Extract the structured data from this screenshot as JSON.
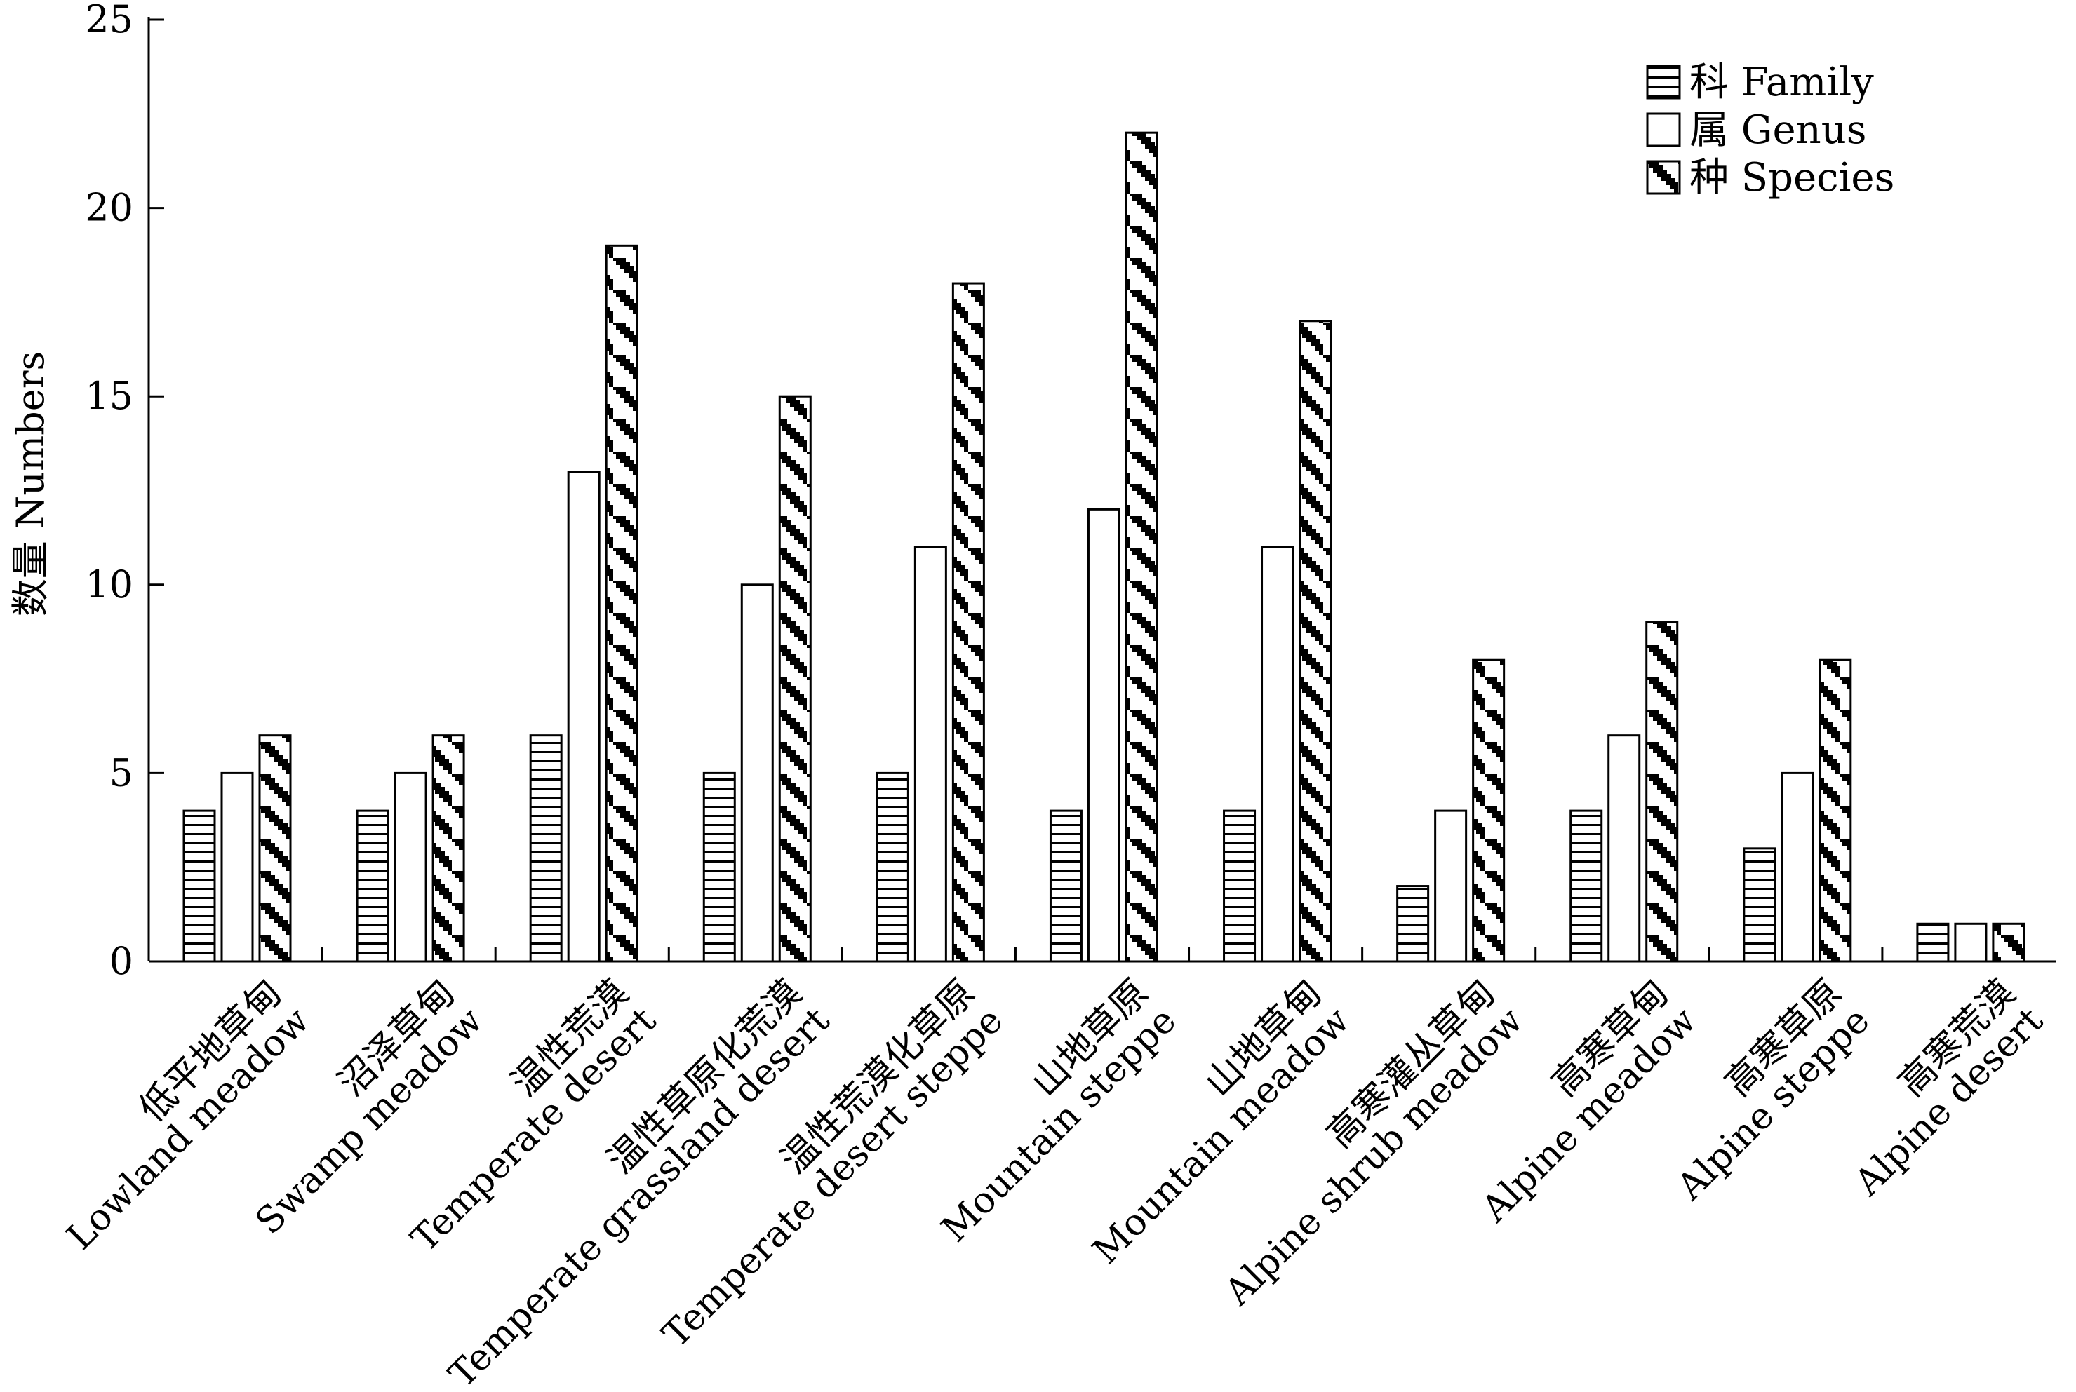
{
  "chart_data": {
    "type": "bar",
    "ylabel": "数量 Numbers",
    "xlabel": "",
    "ylim": [
      0,
      25
    ],
    "yticks": [
      "0",
      "5",
      "10",
      "15",
      "20",
      "25"
    ],
    "grid": false,
    "legend_position": "top-right",
    "categories": [
      {
        "zh": "低平地草甸",
        "en": "Lowland meadow"
      },
      {
        "zh": "沼泽草甸",
        "en": "Swamp meadow"
      },
      {
        "zh": "温性荒漠",
        "en": "Temperate desert"
      },
      {
        "zh": "温性草原化荒漠",
        "en": "Temperate grassland desert"
      },
      {
        "zh": "温性荒漠化草原",
        "en": "Temperate desert steppe"
      },
      {
        "zh": "山地草原",
        "en": "Mountain steppe"
      },
      {
        "zh": "山地草甸",
        "en": "Mountain meadow"
      },
      {
        "zh": "高寒灌丛草甸",
        "en": "Alpine shrub meadow"
      },
      {
        "zh": "高寒草甸",
        "en": "Alpine meadow"
      },
      {
        "zh": "高寒草原",
        "en": "Alpine steppe"
      },
      {
        "zh": "高寒荒漠",
        "en": "Alpine desert"
      }
    ],
    "series": [
      {
        "name": "科 Family",
        "pattern": "horizontal-lines",
        "values": [
          4,
          4,
          6,
          5,
          5,
          4,
          4,
          2,
          4,
          3,
          1
        ]
      },
      {
        "name": "属 Genus",
        "pattern": "plain",
        "values": [
          5,
          5,
          13,
          10,
          11,
          12,
          11,
          4,
          6,
          5,
          1
        ]
      },
      {
        "name": "种 Species",
        "pattern": "diagonal-checker",
        "values": [
          6,
          6,
          19,
          15,
          18,
          22,
          17,
          8,
          9,
          8,
          1
        ]
      }
    ],
    "colors": {
      "stroke": "#000000",
      "fill": "#ffffff"
    }
  }
}
